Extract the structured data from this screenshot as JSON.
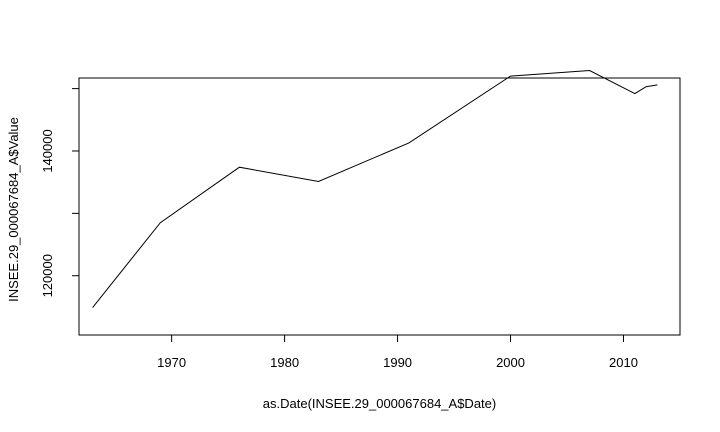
{
  "chart_data": {
    "type": "line",
    "title": "",
    "xlabel": "as.Date(INSEE.29_000067684_A$Date)",
    "ylabel": "INSEE.29_000067684_A$Value",
    "xlim": [
      1961.8,
      2015.0
    ],
    "ylim": [
      110500,
      151700
    ],
    "x_ticks": [
      1970,
      1980,
      1990,
      2000,
      2010
    ],
    "x_tick_labels": [
      "1970",
      "1980",
      "1990",
      "2000",
      "2010"
    ],
    "y_ticks": [
      120000,
      140000
    ],
    "y_tick_labels": [
      "120000",
      "140000"
    ],
    "y_ticks_unlabeled": [
      130000,
      150000
    ],
    "grid": false,
    "legend": "none",
    "line_color": "#000000",
    "series": [
      {
        "x": [
          1963,
          1969,
          1976,
          1983,
          1991,
          2000,
          2007,
          2011,
          2012,
          2013
        ],
        "y": [
          114900,
          128500,
          137400,
          135100,
          141300,
          152000,
          152900,
          149200,
          150300,
          150600
        ]
      }
    ]
  }
}
